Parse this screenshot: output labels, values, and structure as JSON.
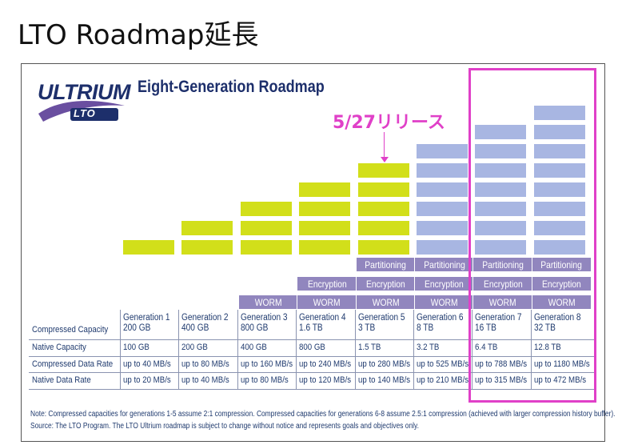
{
  "slide": {
    "title": "LTO Roadmap延長"
  },
  "diagram": {
    "logo": {
      "main": "ULTRIUM",
      "sub": "LTO"
    },
    "title": "Eight-Generation Roadmap",
    "callout": "5/27リリース",
    "colors": {
      "past": "#d2df1a",
      "future": "#a8b6e2",
      "feature": "#9186be",
      "highlight": "#e040c8"
    },
    "features": {
      "partitioning": "Partitioning",
      "encryption": "Encryption",
      "worm": "WORM"
    },
    "row_labels": [
      "Compressed Capacity",
      "Native Capacity",
      "Compressed Data Rate",
      "Native Data Rate"
    ],
    "generations": [
      {
        "name": "Generation 1",
        "compressed": "200 GB",
        "native": "100 GB",
        "c_rate": "up to 40 MB/s",
        "n_rate": "up to 20 MB/s",
        "blocks": 1,
        "status": "past",
        "features": []
      },
      {
        "name": "Generation 2",
        "compressed": "400 GB",
        "native": "200 GB",
        "c_rate": "up to 80 MB/s",
        "n_rate": "up to 40 MB/s",
        "blocks": 2,
        "status": "past",
        "features": []
      },
      {
        "name": "Generation 3",
        "compressed": "800 GB",
        "native": "400 GB",
        "c_rate": "up to 160 MB/s",
        "n_rate": "up to 80 MB/s",
        "blocks": 3,
        "status": "past",
        "features": [
          "worm"
        ]
      },
      {
        "name": "Generation 4",
        "compressed": "1.6 TB",
        "native": "800 GB",
        "c_rate": "up to 240 MB/s",
        "n_rate": "up to 120 MB/s",
        "blocks": 4,
        "status": "past",
        "features": [
          "worm",
          "encryption"
        ]
      },
      {
        "name": "Generation 5",
        "compressed": "3 TB",
        "native": "1.5 TB",
        "c_rate": "up to 280 MB/s",
        "n_rate": "up to 140 MB/s",
        "blocks": 5,
        "status": "past",
        "features": [
          "worm",
          "encryption",
          "partitioning"
        ]
      },
      {
        "name": "Generation 6",
        "compressed": "8 TB",
        "native": "3.2 TB",
        "c_rate": "up to 525 MB/s",
        "n_rate": "up to 210 MB/s",
        "blocks": 6,
        "status": "future",
        "features": [
          "worm",
          "encryption",
          "partitioning"
        ]
      },
      {
        "name": "Generation 7",
        "compressed": "16 TB",
        "native": "6.4 TB",
        "c_rate": "up to 788 MB/s",
        "n_rate": "up to 315 MB/s",
        "blocks": 7,
        "status": "future",
        "features": [
          "worm",
          "encryption",
          "partitioning"
        ]
      },
      {
        "name": "Generation 8",
        "compressed": "32 TB",
        "native": "12.8 TB",
        "c_rate": "up to 1180 MB/s",
        "n_rate": "up to 472 MB/s",
        "blocks": 8,
        "status": "future",
        "features": [
          "worm",
          "encryption",
          "partitioning"
        ]
      }
    ],
    "note_line1": "Note:  Compressed capacities for generations 1-5 assume 2:1 compression. Compressed capacities for generations 6-8 assume 2.5:1 compression (achieved with larger compression history buffer).",
    "note_line2": "Source:  The LTO Program. The LTO Ultrium roadmap is subject to change without notice and represents goals and objectives only."
  }
}
